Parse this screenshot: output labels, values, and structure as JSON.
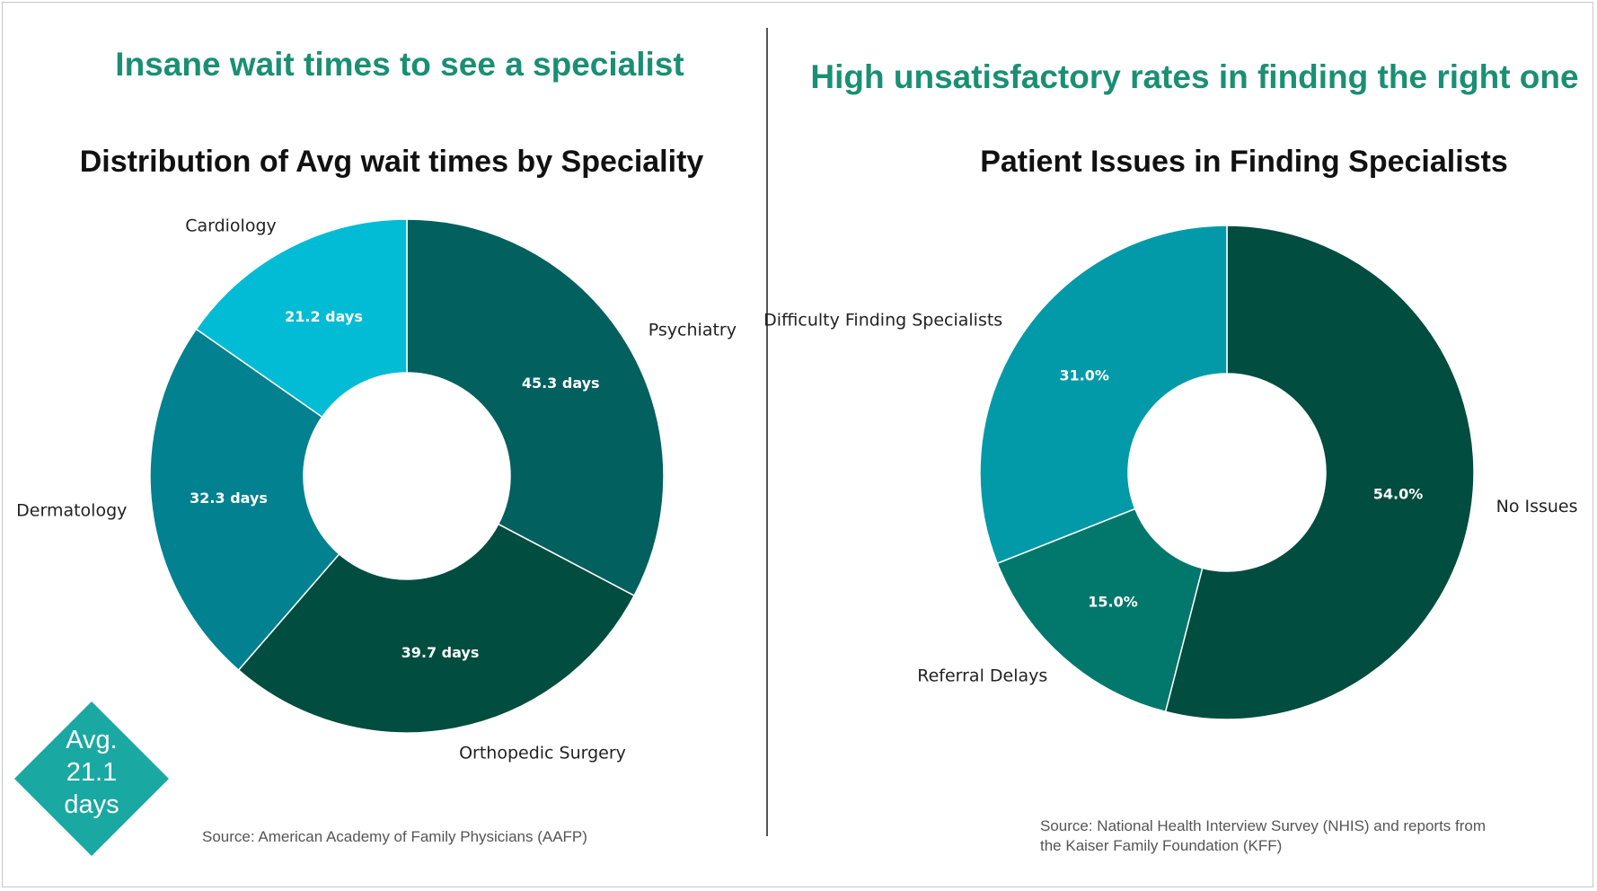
{
  "left_panel": {
    "headline": "Insane wait times to see a specialist",
    "source": "Source: American Academy of Family Physicians (AAFP)"
  },
  "right_panel": {
    "headline": "High unsatisfactory rates in finding the right one",
    "source_line1": "Source: National Health Interview Survey (NHIS) and reports from",
    "source_line2": "the Kaiser Family Foundation (KFF)"
  },
  "badge": {
    "line1": "Avg.",
    "line2": "21.1",
    "line3": "days",
    "color": "#1aa8a2"
  },
  "chart_data": [
    {
      "type": "pie",
      "donut": true,
      "title": "Distribution of Avg wait times by Speciality",
      "unit": "days",
      "start_angle_deg": 90,
      "direction": "clockwise",
      "slices": [
        {
          "label": "Psychiatry",
          "value": 45.3,
          "value_label": "45.3 days",
          "color": "#02605f"
        },
        {
          "label": "Orthopedic Surgery",
          "value": 39.7,
          "value_label": "39.7 days",
          "color": "#014d3f"
        },
        {
          "label": "Dermatology",
          "value": 32.3,
          "value_label": "32.3 days",
          "color": "#028190"
        },
        {
          "label": "Cardiology",
          "value": 21.2,
          "value_label": "21.2 days",
          "color": "#01bcd4"
        }
      ]
    },
    {
      "type": "pie",
      "donut": true,
      "title": "Patient Issues in Finding Specialists",
      "unit": "%",
      "start_angle_deg": 90,
      "direction": "clockwise",
      "slices": [
        {
          "label": "No Issues",
          "value": 54.0,
          "value_label": "54.0%",
          "color": "#014d3f"
        },
        {
          "label": "Referral Delays",
          "value": 15.0,
          "value_label": "15.0%",
          "color": "#02786c"
        },
        {
          "label": "Difficulty Finding Specialists",
          "value": 31.0,
          "value_label": "31.0%",
          "color": "#029aa8"
        }
      ]
    }
  ]
}
